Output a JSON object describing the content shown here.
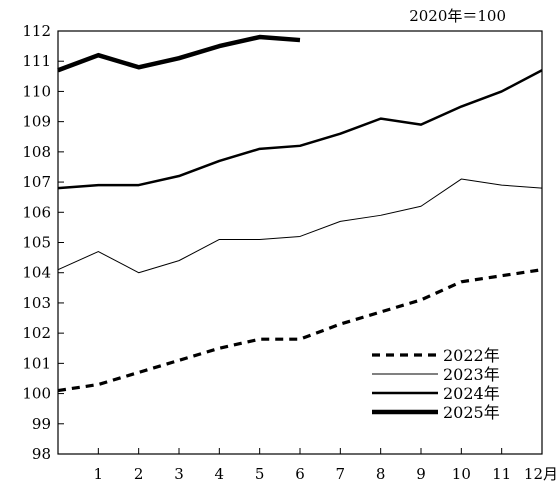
{
  "chart_data": {
    "type": "line",
    "unit_note": "2020年＝100",
    "x": [
      0,
      1,
      2,
      3,
      4,
      5,
      6,
      7,
      8,
      9,
      10,
      11,
      12
    ],
    "x_tick_labels": [
      "",
      "1",
      "2",
      "3",
      "4",
      "5",
      "6",
      "7",
      "8",
      "9",
      "10",
      "11",
      "12月"
    ],
    "ylim": [
      98,
      112
    ],
    "y_ticks": [
      98,
      99,
      100,
      101,
      102,
      103,
      104,
      105,
      106,
      107,
      108,
      109,
      110,
      111,
      112
    ],
    "grid": false,
    "legend_position": "bottom-right",
    "series": [
      {
        "name": "2022年",
        "style": "dashed",
        "color": "#000000",
        "x": [
          0,
          1,
          2,
          3,
          4,
          5,
          6,
          7,
          8,
          9,
          10,
          11,
          12
        ],
        "values": [
          100.1,
          100.3,
          100.7,
          101.1,
          101.5,
          101.8,
          101.8,
          102.3,
          102.7,
          103.1,
          103.7,
          103.9,
          104.1
        ]
      },
      {
        "name": "2023年",
        "style": "thin",
        "color": "#000000",
        "x": [
          0,
          1,
          2,
          3,
          4,
          5,
          6,
          7,
          8,
          9,
          10,
          11,
          12
        ],
        "values": [
          104.1,
          104.7,
          104.0,
          104.4,
          105.1,
          105.1,
          105.2,
          105.7,
          105.9,
          106.2,
          107.1,
          106.9,
          106.8
        ]
      },
      {
        "name": "2024年",
        "style": "medium",
        "color": "#000000",
        "x": [
          0,
          1,
          2,
          3,
          4,
          5,
          6,
          7,
          8,
          9,
          10,
          11,
          12
        ],
        "values": [
          106.8,
          106.9,
          106.9,
          107.2,
          107.7,
          108.1,
          108.2,
          108.6,
          109.1,
          108.9,
          109.5,
          110.0,
          110.7
        ]
      },
      {
        "name": "2025年",
        "style": "thick",
        "color": "#000000",
        "x": [
          0,
          1,
          2,
          3,
          4,
          5,
          6
        ],
        "values": [
          110.7,
          111.2,
          110.8,
          111.1,
          111.5,
          111.8,
          111.7
        ]
      }
    ]
  }
}
